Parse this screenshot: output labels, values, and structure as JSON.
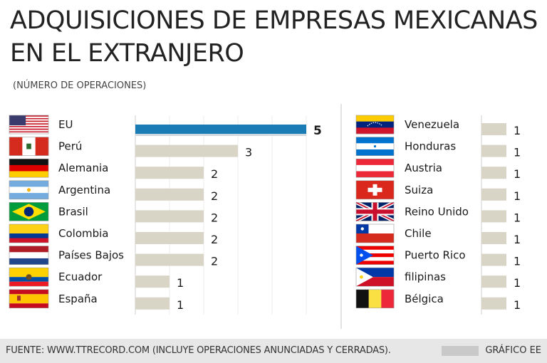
{
  "chart_data": {
    "type": "bar",
    "title": "ADQUISICIONES DE EMPRESAS MEXICANAS EN EL EXTRANJERO",
    "subtitle": "(NÚMERO DE OPERACIONES)",
    "xlim": [
      0,
      5
    ],
    "highlight_color": "#1a7cb5",
    "bar_color": "#d8d4c6",
    "panels": [
      {
        "categories": [
          "EU",
          "Perú",
          "Alemania",
          "Argentina",
          "Brasil",
          "Colombia",
          "Países Bajos",
          "Ecuador",
          "España"
        ],
        "values": [
          5,
          3,
          2,
          2,
          2,
          2,
          2,
          1,
          1
        ],
        "flags": [
          "usa-flag-icon",
          "peru-flag-icon",
          "germany-flag-icon",
          "argentina-flag-icon",
          "brazil-flag-icon",
          "colombia-flag-icon",
          "netherlands-flag-icon",
          "ecuador-flag-icon",
          "spain-flag-icon"
        ]
      },
      {
        "categories": [
          "Venezuela",
          "Honduras",
          "Austria",
          "Suiza",
          "Reino Unido",
          "Chile",
          "Puerto Rico",
          "filipinas",
          "Bélgica"
        ],
        "values": [
          1,
          1,
          1,
          1,
          1,
          1,
          1,
          1,
          1
        ],
        "flags": [
          "venezuela-flag-icon",
          "honduras-flag-icon",
          "austria-flag-icon",
          "switzerland-flag-icon",
          "uk-flag-icon",
          "chile-flag-icon",
          "puerto-rico-flag-icon",
          "philippines-flag-icon",
          "belgium-flag-icon"
        ]
      }
    ]
  },
  "footer": {
    "source": "FUENTE: WWW.TTRECORD.COM (INCLUYE OPERACIONES ANUNCIADAS Y CERRADAS).",
    "credit": "GRÁFICO EE"
  }
}
